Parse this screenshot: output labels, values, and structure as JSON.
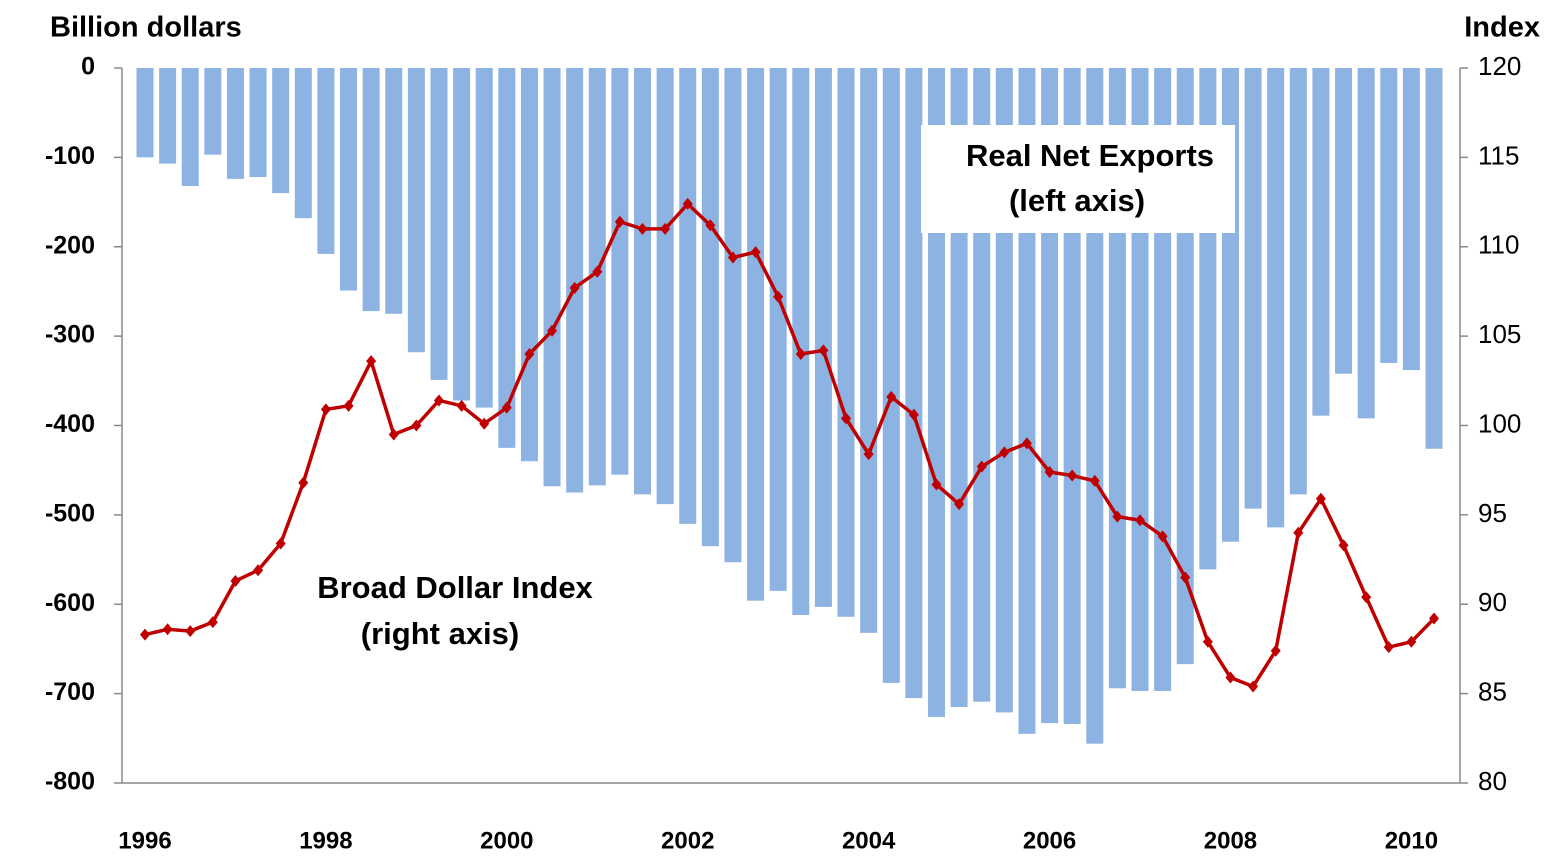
{
  "chart_data": {
    "type": "bar_line",
    "y_label": "Billion dollars",
    "y2_label": "Index",
    "categories": [
      "1996",
      null,
      null,
      null,
      null,
      null,
      null,
      null,
      "1998",
      null,
      null,
      null,
      null,
      null,
      null,
      null,
      "2000",
      null,
      null,
      null,
      null,
      null,
      null,
      null,
      "2002",
      null,
      null,
      null,
      null,
      null,
      null,
      null,
      "2004",
      null,
      null,
      null,
      null,
      null,
      null,
      null,
      "2006",
      null,
      null,
      null,
      null,
      null,
      null,
      null,
      "2008",
      null,
      null,
      null,
      null,
      null,
      null,
      null,
      "2010",
      null
    ],
    "series": [
      {
        "name": "Real Net Exports",
        "type": "bar",
        "color": "#8db3e2",
        "values": [
          -100,
          -107,
          -132,
          -97,
          -124,
          -122,
          -140,
          -168,
          -208,
          -249,
          -272,
          -275,
          -318,
          -349,
          -372,
          -380,
          -425,
          -440,
          -468,
          -475,
          -467,
          -455,
          -477,
          -488,
          -510,
          -535,
          -553,
          -596,
          -585,
          -612,
          -603,
          -614,
          -632,
          -688,
          -705,
          -726,
          -715,
          -709,
          -721,
          -745,
          -733,
          -734,
          -756,
          -694,
          -697,
          -697,
          -667,
          -561,
          -530,
          -493,
          -514,
          -477,
          -389,
          -342,
          -392,
          -330,
          -338,
          -426
        ]
      },
      {
        "name": "Broad Dollar Index",
        "type": "line",
        "axis": "y2",
        "color": "#c00000",
        "values": [
          88.3,
          88.6,
          88.5,
          89.0,
          91.3,
          91.9,
          93.4,
          96.8,
          100.9,
          101.1,
          103.6,
          99.5,
          100.0,
          101.4,
          101.1,
          100.1,
          101.0,
          104.0,
          105.3,
          107.7,
          108.6,
          111.4,
          111.0,
          111.0,
          112.4,
          111.2,
          109.4,
          109.7,
          107.2,
          104.0,
          104.2,
          100.4,
          98.4,
          101.6,
          100.6,
          96.7,
          95.6,
          97.7,
          98.5,
          99.0,
          97.4,
          97.2,
          96.9,
          94.9,
          94.7,
          93.8,
          91.5,
          87.9,
          85.9,
          85.4,
          87.4,
          94.0,
          95.9,
          93.3,
          90.4,
          87.6,
          87.9,
          89.2
        ]
      }
    ],
    "annotations": [
      "Real Net Exports",
      "(left axis)",
      "Broad Dollar Index",
      "(right axis)"
    ],
    "ylim": [
      -800,
      0
    ],
    "yticks": [
      0,
      -100,
      -200,
      -300,
      -400,
      -500,
      -600,
      -700,
      -800
    ],
    "y2lim": [
      80,
      120
    ],
    "y2ticks": [
      80,
      85,
      90,
      95,
      100,
      105,
      110,
      115,
      120
    ]
  }
}
